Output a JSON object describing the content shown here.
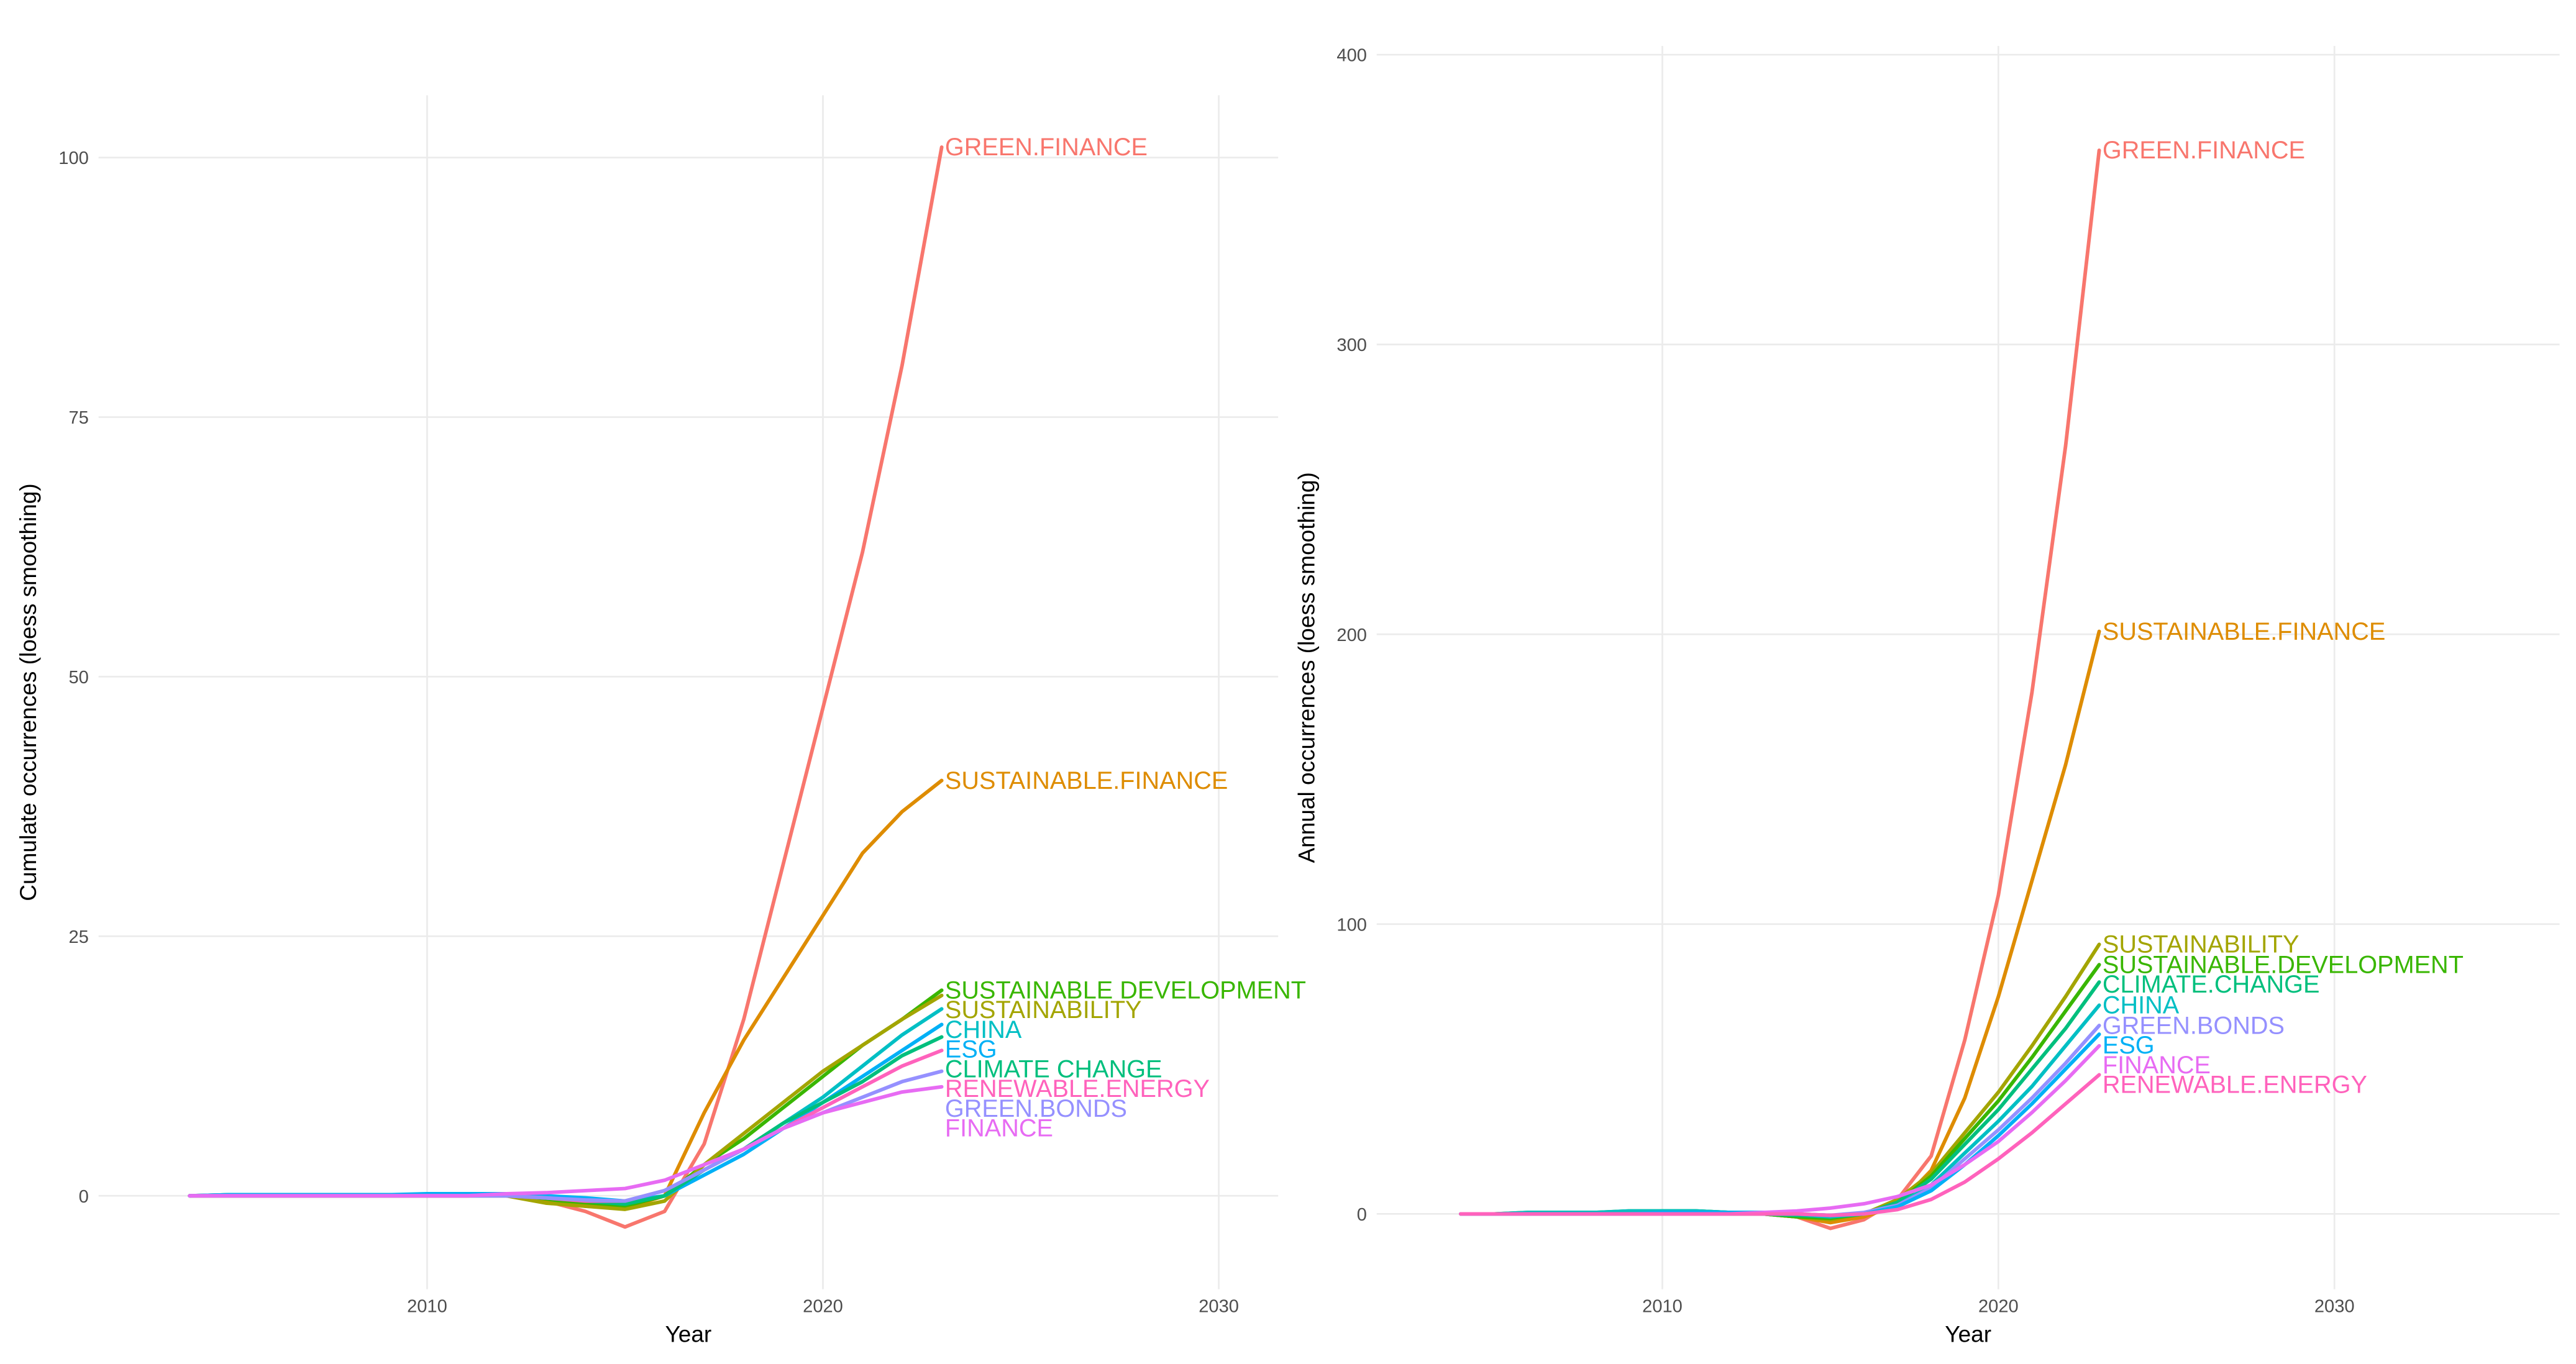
{
  "chart_data": [
    {
      "type": "line",
      "ylabel": "Cumulate occurrences (loess smoothing)",
      "xlabel": "Year",
      "x": [
        2004,
        2005,
        2006,
        2007,
        2008,
        2009,
        2010,
        2011,
        2012,
        2013,
        2014,
        2015,
        2016,
        2017,
        2018,
        2019,
        2020,
        2021,
        2022,
        2023
      ],
      "xlim": [
        2001.7,
        2031.5
      ],
      "xticks": [
        2010,
        2020,
        2030
      ],
      "ylim": [
        -9,
        106
      ],
      "yticks": [
        0,
        25,
        50,
        75,
        100
      ],
      "grid": true,
      "series": [
        {
          "name": "GREEN.FINANCE",
          "color": "#F8766D",
          "values": [
            0,
            0,
            0,
            0,
            0,
            0,
            0,
            0,
            0.1,
            -0.5,
            -1.5,
            -3,
            -1.5,
            5,
            17,
            32,
            47,
            62,
            80,
            101
          ]
        },
        {
          "name": "SUSTAINABLE.FINANCE",
          "color": "#DE8C00",
          "values": [
            0,
            0,
            0,
            0,
            0,
            0,
            0,
            0,
            0.1,
            -0.5,
            -1,
            -1.2,
            0,
            8,
            15,
            21,
            27,
            33,
            37,
            40
          ]
        },
        {
          "name": "SUSTAINABLE DEVELOPMENT",
          "color": "#39B600",
          "values": [
            0,
            0.1,
            0.1,
            0.1,
            0.1,
            0.1,
            0.1,
            0.2,
            0.2,
            -0.3,
            -0.8,
            -1,
            0,
            3,
            5.5,
            8.5,
            11.5,
            14.5,
            17,
            19.8
          ]
        },
        {
          "name": "SUSTAINABILITY",
          "color": "#A3A500",
          "values": [
            0,
            0,
            0,
            0,
            0,
            0,
            0,
            0,
            0,
            -0.7,
            -1,
            -1.3,
            -0.5,
            3,
            6,
            9,
            12,
            14.5,
            17,
            19.3
          ]
        },
        {
          "name": "CHINA",
          "color": "#00BFC4",
          "values": [
            0,
            0.1,
            0.1,
            0.1,
            0.1,
            0.1,
            0.1,
            0.2,
            0.2,
            0,
            -0.3,
            -0.5,
            0.5,
            2.5,
            4.5,
            7,
            9.5,
            12.5,
            15.5,
            18
          ]
        },
        {
          "name": "ESG",
          "color": "#00B0F6",
          "values": [
            0,
            0.1,
            0.1,
            0.1,
            0.1,
            0.1,
            0.2,
            0.2,
            0.2,
            0,
            -0.2,
            -0.5,
            0,
            2,
            4,
            6.5,
            9,
            11.5,
            14,
            16.5
          ]
        },
        {
          "name": "CLIMATE CHANGE",
          "color": "#00BF7D",
          "values": [
            0,
            0,
            0,
            0,
            0,
            0,
            0,
            0,
            0,
            -0.2,
            -0.5,
            -0.8,
            0,
            2.5,
            4.5,
            7,
            9,
            11,
            13.5,
            15.3
          ]
        },
        {
          "name": "RENEWABLE.ENERGY",
          "color": "#FF62BC",
          "values": [
            0,
            0,
            0,
            0,
            0,
            0,
            0,
            0,
            0,
            -0.2,
            -0.5,
            -0.5,
            0.5,
            2.5,
            4.5,
            6.5,
            8.5,
            10.5,
            12.5,
            14
          ]
        },
        {
          "name": "GREEN.BONDS",
          "color": "#9590FF",
          "values": [
            0,
            0,
            0,
            0,
            0,
            0,
            0,
            0,
            0,
            -0.2,
            -0.4,
            -0.5,
            0.5,
            2.5,
            4.5,
            6.5,
            8,
            9.5,
            11,
            12
          ]
        },
        {
          "name": "FINANCE",
          "color": "#E76BF3",
          "values": [
            0,
            0,
            0,
            0,
            0,
            0,
            0,
            0,
            0.2,
            0.3,
            0.5,
            0.7,
            1.5,
            3,
            4.5,
            6.5,
            8,
            9,
            10,
            10.5
          ]
        }
      ]
    },
    {
      "type": "line",
      "ylabel": "Annual occurrences (loess smoothing)",
      "xlabel": "Year",
      "x": [
        2004,
        2005,
        2006,
        2007,
        2008,
        2009,
        2010,
        2011,
        2012,
        2013,
        2014,
        2015,
        2016,
        2017,
        2018,
        2019,
        2020,
        2021,
        2022,
        2023
      ],
      "xlim": [
        2001.5,
        2036.7
      ],
      "xticks": [
        2010,
        2020,
        2030
      ],
      "ylim": [
        -26,
        403
      ],
      "yticks": [
        0,
        100,
        200,
        300,
        400
      ],
      "grid": true,
      "series": [
        {
          "name": "GREEN.FINANCE",
          "color": "#F8766D",
          "values": [
            0,
            0,
            0,
            0,
            0,
            0,
            0,
            0,
            0,
            0,
            -1,
            -5,
            -2,
            5,
            20,
            60,
            110,
            180,
            265,
            367
          ]
        },
        {
          "name": "SUSTAINABLE.FINANCE",
          "color": "#DE8C00",
          "values": [
            0,
            0,
            0,
            0,
            0,
            0,
            0,
            0,
            0,
            0,
            -1,
            -3,
            -1,
            3,
            15,
            40,
            75,
            115,
            155,
            201
          ]
        },
        {
          "name": "SUSTAINABILITY",
          "color": "#A3A500",
          "values": [
            0,
            0,
            0,
            0,
            0,
            0,
            0,
            0,
            0,
            0,
            -1,
            -2,
            0,
            5,
            14,
            28,
            42,
            58,
            75,
            93
          ]
        },
        {
          "name": "SUSTAINABLE.DEVELOPMENT",
          "color": "#39B600",
          "values": [
            0,
            0,
            0.5,
            0.5,
            0.5,
            1,
            1,
            1,
            0.5,
            0,
            -1,
            -1.5,
            0,
            4,
            13,
            26,
            39,
            54,
            70,
            86
          ]
        },
        {
          "name": "CLIMATE.CHANGE",
          "color": "#00BF7D",
          "values": [
            0,
            0,
            0,
            0.5,
            0.5,
            0.5,
            1,
            1,
            0.5,
            0,
            -0.5,
            -1,
            0,
            4,
            12,
            24,
            36,
            50,
            64,
            80
          ]
        },
        {
          "name": "CHINA",
          "color": "#00BFC4",
          "values": [
            0,
            0,
            0.5,
            0.5,
            0.5,
            1,
            1,
            1,
            0.5,
            0.5,
            0,
            -1,
            0,
            3,
            10,
            21,
            32,
            44,
            58,
            72
          ]
        },
        {
          "name": "GREEN.BONDS",
          "color": "#9590FF",
          "values": [
            0,
            0,
            0,
            0,
            0,
            0,
            0,
            0,
            0,
            0,
            0,
            -0.5,
            0.5,
            3,
            9,
            19,
            29,
            40,
            52,
            65
          ]
        },
        {
          "name": "ESG",
          "color": "#00B0F6",
          "values": [
            0,
            0,
            0,
            0,
            0,
            0,
            0.5,
            0.5,
            0.5,
            0.5,
            0,
            -0.5,
            0,
            2.5,
            8,
            17,
            27,
            38,
            50,
            62
          ]
        },
        {
          "name": "FINANCE",
          "color": "#E76BF3",
          "values": [
            0,
            0,
            0,
            0,
            0,
            0,
            0,
            0,
            0,
            0.5,
            1,
            2,
            3.5,
            6,
            10,
            17,
            25,
            35,
            46,
            58
          ]
        },
        {
          "name": "RENEWABLE.ENERGY",
          "color": "#FF62BC",
          "values": [
            0,
            0,
            0,
            0,
            0,
            0,
            0,
            0,
            0,
            0,
            0,
            -0.5,
            0,
            1.5,
            5,
            11,
            19,
            28,
            38,
            48
          ]
        }
      ]
    }
  ]
}
